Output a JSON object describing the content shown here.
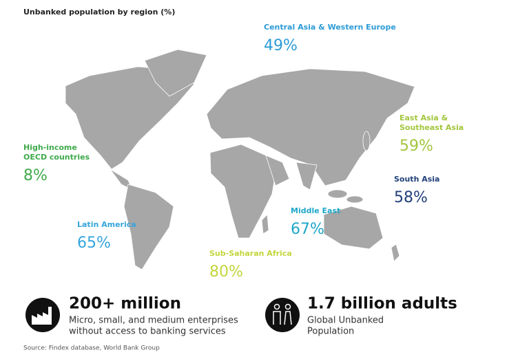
{
  "title": "Unbanked population by region (%)",
  "regions": [
    {
      "name_lines": [
        "Central Asia & Western Europe"
      ],
      "value": "49%",
      "color": "#2b9bd6"
    },
    {
      "name_lines": [
        "East Asia &",
        "Southeast Asia"
      ],
      "value": "59%",
      "color": "#a3c63c"
    },
    {
      "name_lines": [
        "High-income",
        "OECD countries"
      ],
      "value": "8%",
      "color": "#3daa4a"
    },
    {
      "name_lines": [
        "South Asia"
      ],
      "value": "58%",
      "color": "#21407a"
    },
    {
      "name_lines": [
        "Middle East"
      ],
      "value": "67%",
      "color": "#1ea7c8"
    },
    {
      "name_lines": [
        "Latin America"
      ],
      "value": "65%",
      "color": "#34a5dd"
    },
    {
      "name_lines": [
        "Sub-Saharan Africa"
      ],
      "value": "80%",
      "color": "#c3d63c"
    }
  ],
  "stats": [
    {
      "headline": "200+ million",
      "lines": [
        "Micro, small, and medium enterprises",
        "without access to banking services"
      ]
    },
    {
      "headline": "1.7 billion adults",
      "lines": [
        "Global Unbanked",
        "Population"
      ]
    }
  ],
  "source": "Source: Findex database, World Bank Group"
}
